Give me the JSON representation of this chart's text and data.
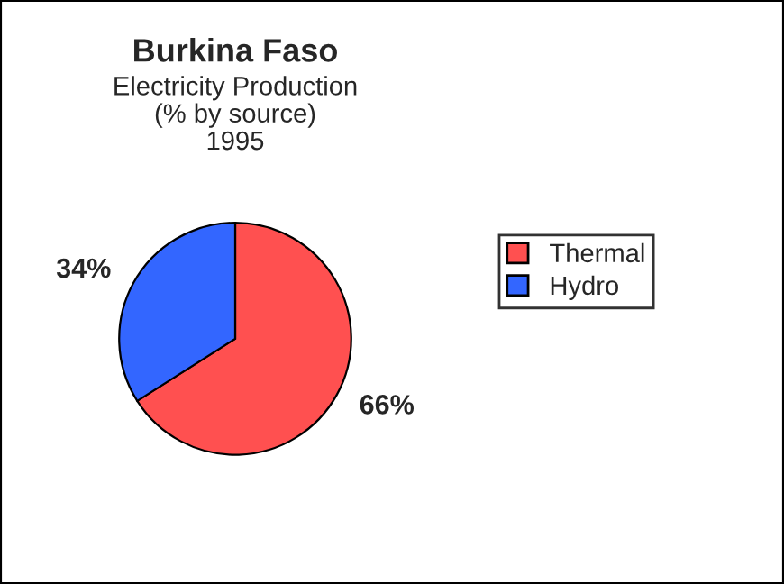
{
  "chart_data": {
    "type": "pie",
    "title": "Burkina Faso",
    "subtitle": "Electricity Production\n(% by source)\n1995",
    "categories": [
      "Thermal",
      "Hydro"
    ],
    "values": [
      66,
      34
    ],
    "colors": [
      "#ff5050",
      "#3366ff"
    ],
    "value_labels": [
      "66%",
      "34%"
    ],
    "legend": "right"
  }
}
